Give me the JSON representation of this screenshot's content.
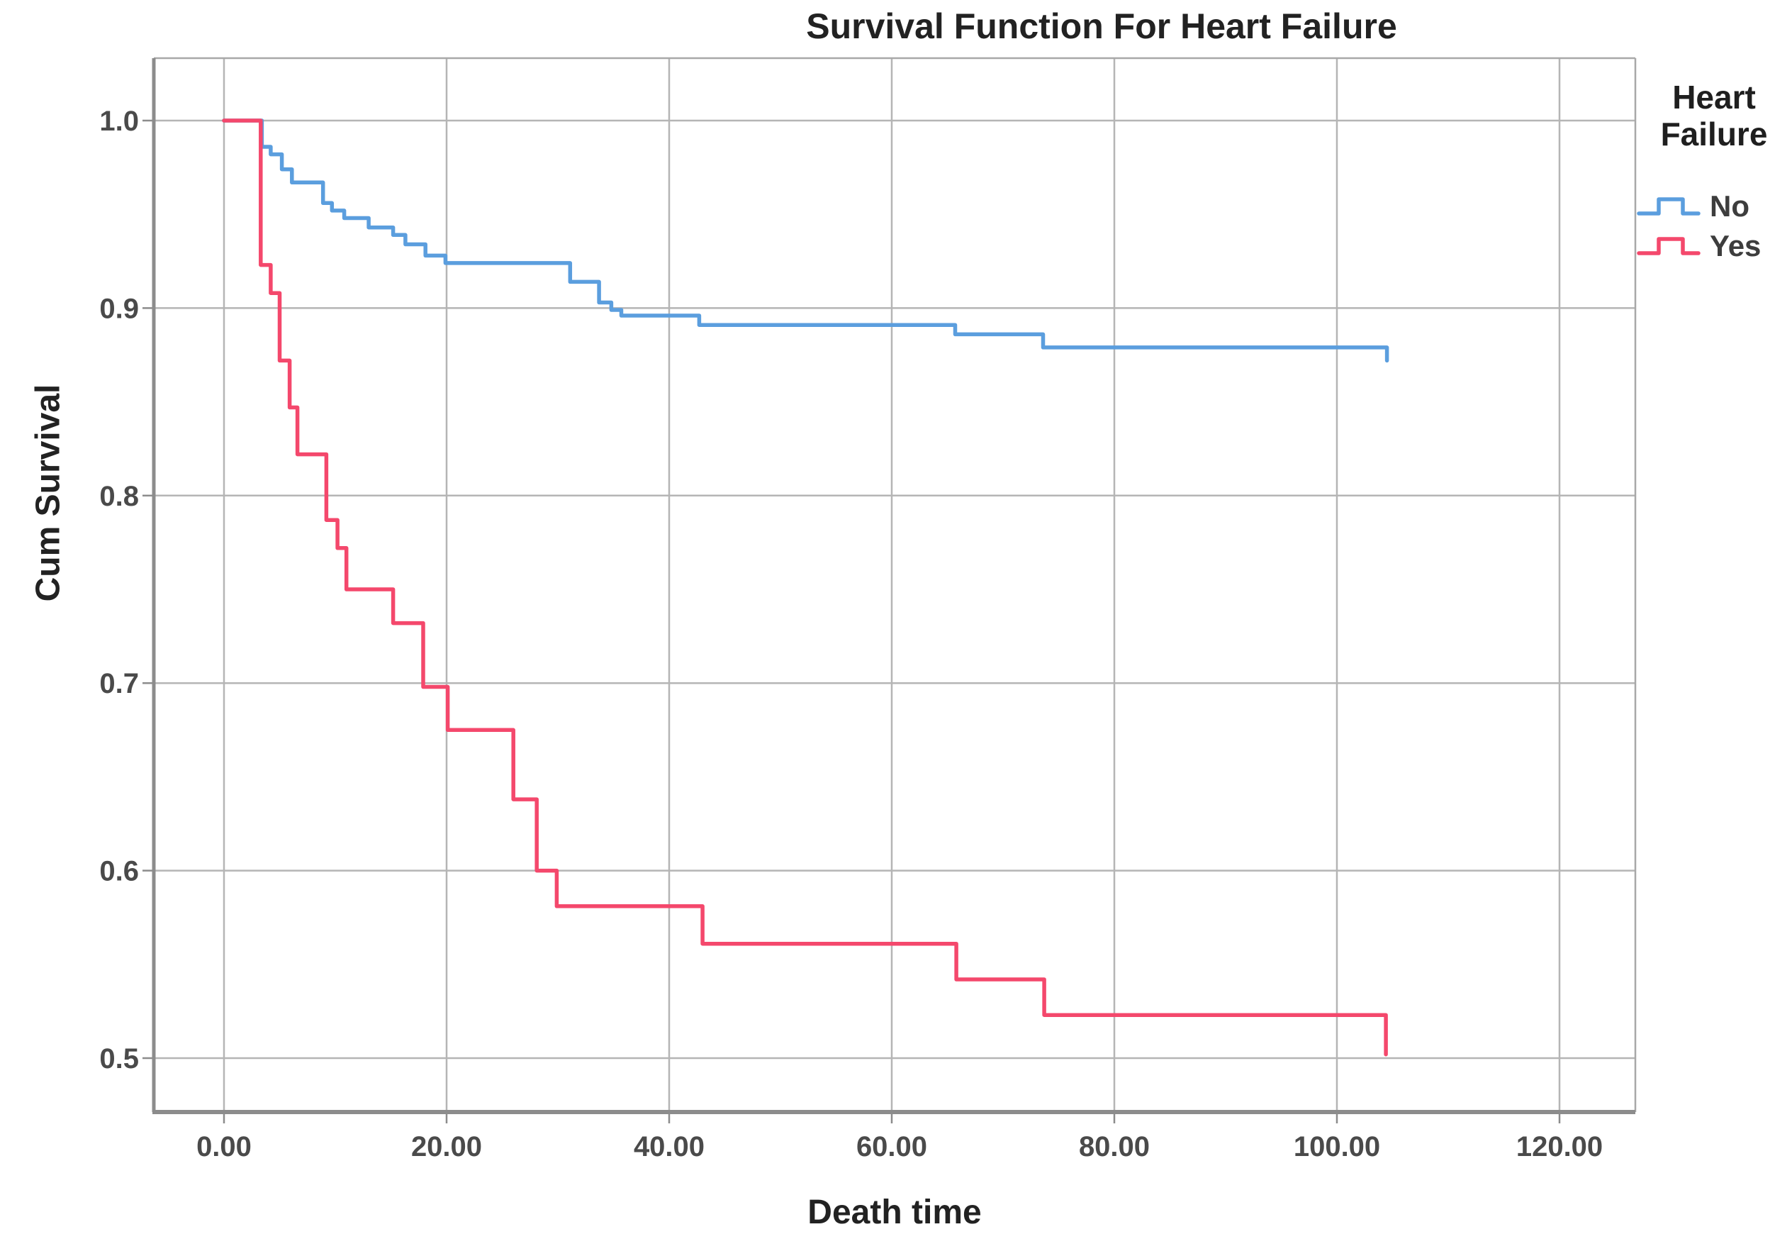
{
  "figure": {
    "title": "Survival Function For Heart Failure"
  },
  "axes": {
    "xlabel": "Death time",
    "ylabel": "Cum Survival"
  },
  "legend": {
    "title": "Heart Failure",
    "position": "right",
    "items": [
      {
        "label": "No",
        "color": "#5b9ede"
      },
      {
        "label": "Yes",
        "color": "#f4486c"
      }
    ]
  },
  "theme": {
    "background": "#ffffff",
    "grid": "#b5b5b5",
    "frame_major": "#8c8c8c",
    "frame_minor": "#a8a8a8",
    "tick_text": "#4a4a4a",
    "title_text": "#222222"
  },
  "chart_data": {
    "type": "line",
    "subtype": "kaplan-meier-step",
    "title": "Survival Function For Heart Failure",
    "xlabel": "Death time",
    "ylabel": "Cum Survival",
    "xlim": [
      -6.3,
      126.9
    ],
    "ylim": [
      0.471,
      1.033
    ],
    "grid": true,
    "legend_position": "right",
    "xticks": {
      "values": [
        0,
        20,
        40,
        60,
        80,
        100,
        120
      ],
      "labels": [
        "0.00",
        "20.00",
        "40.00",
        "60.00",
        "80.00",
        "100.00",
        "120.00"
      ]
    },
    "yticks": {
      "values": [
        1.0,
        0.9,
        0.8,
        0.7,
        0.6,
        0.5
      ],
      "labels": [
        "1.0",
        "0.9",
        "0.8",
        "0.7",
        "0.6",
        "0.5"
      ]
    },
    "series": [
      {
        "name": "No",
        "color": "#5b9ede",
        "steps": [
          [
            0,
            1.0
          ],
          [
            3.4,
            0.986
          ],
          [
            4.2,
            0.982
          ],
          [
            5.2,
            0.974
          ],
          [
            6.1,
            0.967
          ],
          [
            8.9,
            0.956
          ],
          [
            9.7,
            0.952
          ],
          [
            10.8,
            0.948
          ],
          [
            13.0,
            0.943
          ],
          [
            15.2,
            0.939
          ],
          [
            16.3,
            0.934
          ],
          [
            18.1,
            0.928
          ],
          [
            19.9,
            0.924
          ],
          [
            31.1,
            0.914
          ],
          [
            33.7,
            0.903
          ],
          [
            34.8,
            0.899
          ],
          [
            35.7,
            0.896
          ],
          [
            42.7,
            0.891
          ],
          [
            65.7,
            0.886
          ],
          [
            73.6,
            0.879
          ],
          [
            104.5,
            0.872
          ]
        ]
      },
      {
        "name": "Yes",
        "color": "#f4486c",
        "steps": [
          [
            0,
            1.0
          ],
          [
            3.3,
            0.923
          ],
          [
            4.2,
            0.908
          ],
          [
            5.0,
            0.872
          ],
          [
            5.9,
            0.847
          ],
          [
            6.6,
            0.822
          ],
          [
            9.2,
            0.787
          ],
          [
            10.2,
            0.772
          ],
          [
            11.0,
            0.75
          ],
          [
            15.2,
            0.732
          ],
          [
            17.9,
            0.698
          ],
          [
            20.1,
            0.675
          ],
          [
            26.0,
            0.638
          ],
          [
            28.1,
            0.6
          ],
          [
            29.9,
            0.581
          ],
          [
            43.0,
            0.561
          ],
          [
            65.8,
            0.542
          ],
          [
            73.7,
            0.523
          ],
          [
            104.4,
            0.502
          ]
        ]
      }
    ]
  }
}
